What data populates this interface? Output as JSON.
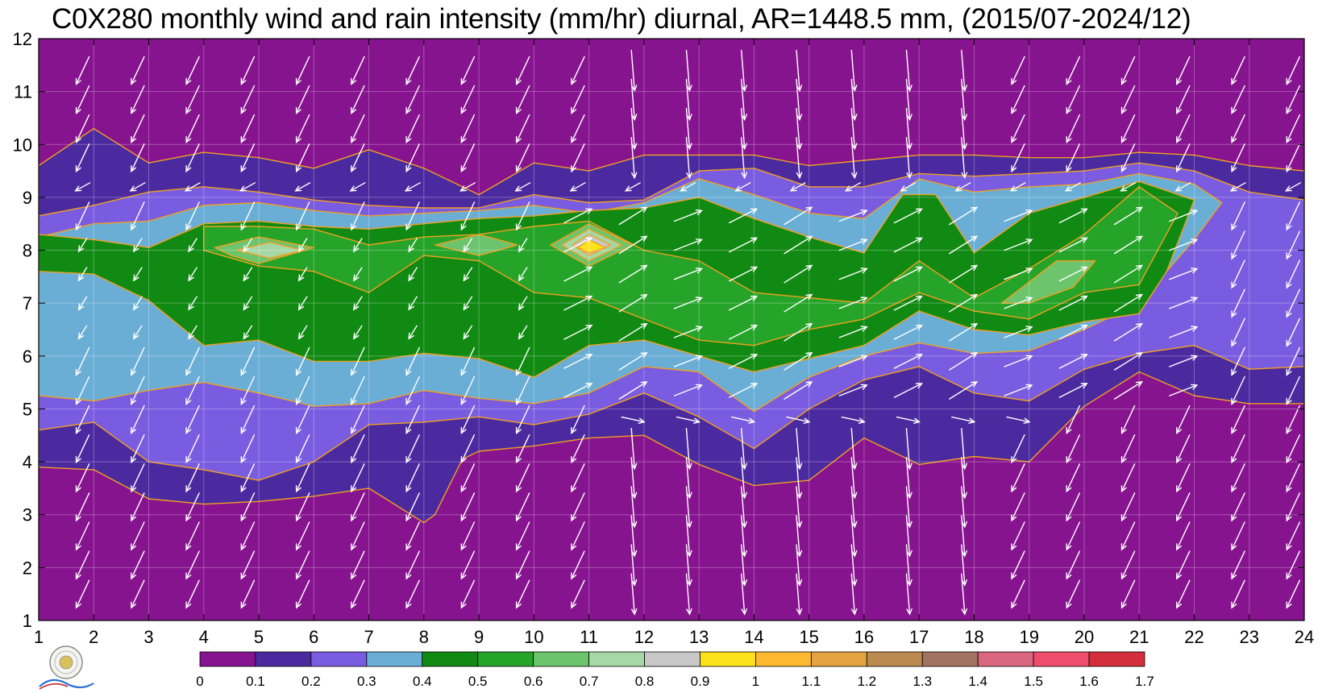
{
  "chart_data": {
    "type": "heatmap",
    "title": "C0X280 monthly wind and rain intensity (mm/hr) diurnal, AR=1448.5 mm, (2015/07-2024/12)",
    "xlabel": "",
    "ylabel": "",
    "x_ticks": [
      1,
      2,
      3,
      4,
      5,
      6,
      7,
      8,
      9,
      10,
      11,
      12,
      13,
      14,
      15,
      16,
      17,
      18,
      19,
      20,
      21,
      22,
      23,
      24
    ],
    "y_ticks": [
      1,
      2,
      3,
      4,
      5,
      6,
      7,
      8,
      9,
      10,
      11,
      12
    ],
    "xlim": [
      1,
      24
    ],
    "ylim": [
      1,
      12
    ],
    "grid": true,
    "colorbar": {
      "levels": [
        "0",
        "0.1",
        "0.2",
        "0.3",
        "0.4",
        "0.5",
        "0.6",
        "0.7",
        "0.8",
        "0.9",
        "1",
        "1.1",
        "1.2",
        "1.3",
        "1.4",
        "1.5",
        "1.6",
        "1.7"
      ],
      "colors": [
        "#87148f",
        "#4b2aa0",
        "#7a5ce0",
        "#6aaed6",
        "#118a13",
        "#26a42a",
        "#6cc46c",
        "#a6d8a6",
        "#c8c8c8",
        "#fde11b",
        "#fcb930",
        "#e4a341",
        "#bb8a4e",
        "#a37361",
        "#da6680",
        "#ee4d6c",
        "#d42d3b"
      ]
    },
    "contour_levels": [
      {
        "value": 0.1,
        "polygon": [
          [
            1,
            9.6
          ],
          [
            2,
            10.3
          ],
          [
            3,
            9.65
          ],
          [
            4,
            9.85
          ],
          [
            5,
            9.75
          ],
          [
            6,
            9.55
          ],
          [
            7,
            9.9
          ],
          [
            8,
            9.55
          ],
          [
            9,
            9.05
          ],
          [
            10,
            9.65
          ],
          [
            11,
            9.5
          ],
          [
            12,
            9.8
          ],
          [
            13,
            9.8
          ],
          [
            14,
            9.8
          ],
          [
            15,
            9.6
          ],
          [
            16,
            9.7
          ],
          [
            17,
            9.8
          ],
          [
            18,
            9.8
          ],
          [
            19,
            9.75
          ],
          [
            20,
            9.75
          ],
          [
            21,
            9.85
          ],
          [
            22,
            9.8
          ],
          [
            23,
            9.6
          ],
          [
            24,
            9.5
          ],
          [
            24,
            5.1
          ],
          [
            23,
            5.1
          ],
          [
            22,
            5.25
          ],
          [
            21,
            5.7
          ],
          [
            20,
            5.05
          ],
          [
            19,
            4.0
          ],
          [
            18,
            4.1
          ],
          [
            17,
            3.95
          ],
          [
            16,
            4.45
          ],
          [
            15,
            3.65
          ],
          [
            14,
            3.55
          ],
          [
            13,
            3.95
          ],
          [
            12,
            4.5
          ],
          [
            11,
            4.45
          ],
          [
            10,
            4.3
          ],
          [
            9,
            4.2
          ],
          [
            8.7,
            4.05
          ],
          [
            8.2,
            3.0
          ],
          [
            8,
            2.85
          ],
          [
            7,
            3.5
          ],
          [
            6,
            3.35
          ],
          [
            5,
            3.25
          ],
          [
            4,
            3.2
          ],
          [
            3,
            3.3
          ],
          [
            2,
            3.85
          ],
          [
            1,
            3.9
          ]
        ]
      },
      {
        "value": 0.2,
        "polygon": [
          [
            1,
            8.65
          ],
          [
            2,
            8.85
          ],
          [
            3,
            9.1
          ],
          [
            4,
            9.2
          ],
          [
            5,
            9.1
          ],
          [
            6,
            8.95
          ],
          [
            7,
            8.85
          ],
          [
            8,
            8.8
          ],
          [
            9,
            8.8
          ],
          [
            10,
            9.05
          ],
          [
            11,
            8.9
          ],
          [
            12,
            8.95
          ],
          [
            13,
            9.5
          ],
          [
            14,
            9.55
          ],
          [
            15,
            9.2
          ],
          [
            16,
            9.2
          ],
          [
            17,
            9.45
          ],
          [
            18,
            9.4
          ],
          [
            19,
            9.45
          ],
          [
            20,
            9.5
          ],
          [
            21,
            9.65
          ],
          [
            22,
            9.5
          ],
          [
            23,
            9.1
          ],
          [
            24,
            8.95
          ],
          [
            24,
            5.8
          ],
          [
            23,
            5.75
          ],
          [
            22,
            6.2
          ],
          [
            21,
            6.05
          ],
          [
            20,
            5.75
          ],
          [
            19,
            5.15
          ],
          [
            18,
            5.3
          ],
          [
            17,
            5.8
          ],
          [
            16,
            5.55
          ],
          [
            15,
            5.0
          ],
          [
            14,
            4.25
          ],
          [
            13,
            4.85
          ],
          [
            12,
            5.3
          ],
          [
            11,
            4.9
          ],
          [
            10,
            4.7
          ],
          [
            9,
            4.85
          ],
          [
            8,
            4.75
          ],
          [
            7,
            4.7
          ],
          [
            6,
            4.0
          ],
          [
            5,
            3.65
          ],
          [
            4,
            3.85
          ],
          [
            3,
            4.0
          ],
          [
            2,
            4.75
          ],
          [
            1,
            4.6
          ]
        ]
      },
      {
        "value": 0.3,
        "polygon": [
          [
            1,
            8.25
          ],
          [
            2,
            8.5
          ],
          [
            3,
            8.55
          ],
          [
            4,
            8.85
          ],
          [
            5,
            8.9
          ],
          [
            6,
            8.75
          ],
          [
            7,
            8.65
          ],
          [
            8,
            8.7
          ],
          [
            9,
            8.75
          ],
          [
            10,
            8.85
          ],
          [
            11,
            8.7
          ],
          [
            12,
            8.9
          ],
          [
            13,
            9.35
          ],
          [
            14,
            9.05
          ],
          [
            15,
            8.7
          ],
          [
            16,
            8.6
          ],
          [
            17,
            9.35
          ],
          [
            18,
            9.1
          ],
          [
            19,
            9.2
          ],
          [
            20,
            9.25
          ],
          [
            21,
            9.45
          ],
          [
            22,
            9.25
          ],
          [
            22.5,
            8.9
          ],
          [
            22,
            8.2
          ],
          [
            21,
            7.0
          ],
          [
            20,
            6.5
          ],
          [
            19,
            6.1
          ],
          [
            18,
            6.05
          ],
          [
            17,
            6.25
          ],
          [
            16,
            6.0
          ],
          [
            15,
            5.6
          ],
          [
            14,
            4.95
          ],
          [
            13,
            5.7
          ],
          [
            12,
            5.8
          ],
          [
            11,
            5.3
          ],
          [
            10,
            5.1
          ],
          [
            9,
            5.2
          ],
          [
            8,
            5.35
          ],
          [
            7,
            5.1
          ],
          [
            6,
            5.05
          ],
          [
            5,
            5.3
          ],
          [
            4,
            5.5
          ],
          [
            3,
            5.35
          ],
          [
            2,
            5.15
          ],
          [
            1,
            5.25
          ]
        ]
      },
      {
        "value": 0.4,
        "polygon": [
          [
            1,
            8.3
          ],
          [
            2,
            8.2
          ],
          [
            3,
            8.05
          ],
          [
            4,
            8.5
          ],
          [
            5,
            8.55
          ],
          [
            6,
            8.45
          ],
          [
            7,
            8.4
          ],
          [
            8,
            8.5
          ],
          [
            9,
            8.6
          ],
          [
            10,
            8.65
          ],
          [
            11,
            8.75
          ],
          [
            12,
            8.8
          ],
          [
            13,
            9.0
          ],
          [
            14,
            8.6
          ],
          [
            15,
            8.25
          ],
          [
            16,
            7.95
          ],
          [
            16.7,
            9.05
          ],
          [
            17.3,
            9.05
          ],
          [
            18,
            7.95
          ],
          [
            19,
            8.7
          ],
          [
            20,
            9.0
          ],
          [
            21,
            9.3
          ],
          [
            22,
            8.95
          ],
          [
            21.5,
            7.6
          ],
          [
            21,
            6.8
          ],
          [
            20,
            6.65
          ],
          [
            19,
            6.4
          ],
          [
            18,
            6.5
          ],
          [
            17,
            6.85
          ],
          [
            16,
            6.2
          ],
          [
            15,
            5.95
          ],
          [
            14,
            5.7
          ],
          [
            13,
            6.0
          ],
          [
            12,
            6.3
          ],
          [
            11,
            6.2
          ],
          [
            10,
            5.6
          ],
          [
            9,
            5.95
          ],
          [
            8,
            6.05
          ],
          [
            7,
            5.9
          ],
          [
            6,
            5.9
          ],
          [
            5,
            6.3
          ],
          [
            4,
            6.2
          ],
          [
            3,
            7.05
          ],
          [
            2,
            7.55
          ],
          [
            1,
            7.6
          ]
        ]
      },
      {
        "value": 0.5,
        "polygon": [
          [
            4,
            8.45
          ],
          [
            5,
            8.45
          ],
          [
            6,
            8.4
          ],
          [
            7,
            8.1
          ],
          [
            8,
            8.25
          ],
          [
            9,
            8.3
          ],
          [
            10,
            8.45
          ],
          [
            11,
            8.55
          ],
          [
            12,
            8.0
          ],
          [
            13,
            7.8
          ],
          [
            14,
            7.2
          ],
          [
            15,
            7.1
          ],
          [
            16,
            7.0
          ],
          [
            17,
            7.8
          ],
          [
            18,
            7.1
          ],
          [
            19,
            7.65
          ],
          [
            20,
            8.3
          ],
          [
            21,
            9.2
          ],
          [
            21.7,
            8.7
          ],
          [
            21,
            7.35
          ],
          [
            20,
            7.2
          ],
          [
            19,
            6.7
          ],
          [
            18,
            6.85
          ],
          [
            17,
            7.2
          ],
          [
            16,
            6.7
          ],
          [
            15,
            6.5
          ],
          [
            14,
            6.2
          ],
          [
            13,
            6.3
          ],
          [
            12,
            6.7
          ],
          [
            11,
            7.1
          ],
          [
            10,
            7.2
          ],
          [
            9,
            7.8
          ],
          [
            8,
            7.9
          ],
          [
            7,
            7.2
          ],
          [
            6,
            7.6
          ],
          [
            5,
            7.7
          ],
          [
            4,
            8.0
          ]
        ]
      },
      {
        "value": 0.6,
        "polygon": [
          [
            4.2,
            8.05
          ],
          [
            5,
            8.25
          ],
          [
            6,
            8.05
          ],
          [
            5,
            7.75
          ],
          [
            4.5,
            7.9
          ]
        ]
      },
      {
        "value": 0.7,
        "polygon": [
          [
            4.6,
            8.0
          ],
          [
            5.2,
            8.15
          ],
          [
            5.8,
            8.0
          ],
          [
            5.2,
            7.85
          ]
        ]
      },
      {
        "value": 0.6,
        "polygon": [
          [
            8.2,
            8.1
          ],
          [
            9,
            8.3
          ],
          [
            9.7,
            8.1
          ],
          [
            9,
            7.9
          ]
        ]
      },
      {
        "value": 0.6,
        "polygon": [
          [
            10.3,
            8.1
          ],
          [
            11,
            8.5
          ],
          [
            11.8,
            8.1
          ],
          [
            11,
            7.7
          ]
        ]
      },
      {
        "value": 0.7,
        "polygon": [
          [
            10.5,
            8.1
          ],
          [
            11,
            8.4
          ],
          [
            11.6,
            8.1
          ],
          [
            11,
            7.8
          ]
        ]
      },
      {
        "value": 0.8,
        "polygon": [
          [
            10.7,
            8.1
          ],
          [
            11,
            8.3
          ],
          [
            11.4,
            8.1
          ],
          [
            11,
            7.9
          ]
        ]
      },
      {
        "value": 0.9,
        "polygon": [
          [
            10.8,
            8.05
          ],
          [
            11,
            8.2
          ],
          [
            11.3,
            8.05
          ],
          [
            11,
            7.95
          ]
        ]
      },
      {
        "value": 0.6,
        "polygon": [
          [
            18.5,
            7.0
          ],
          [
            19.5,
            7.8
          ],
          [
            20.2,
            7.8
          ],
          [
            19.8,
            7.3
          ],
          [
            19,
            7.0
          ]
        ]
      }
    ]
  }
}
